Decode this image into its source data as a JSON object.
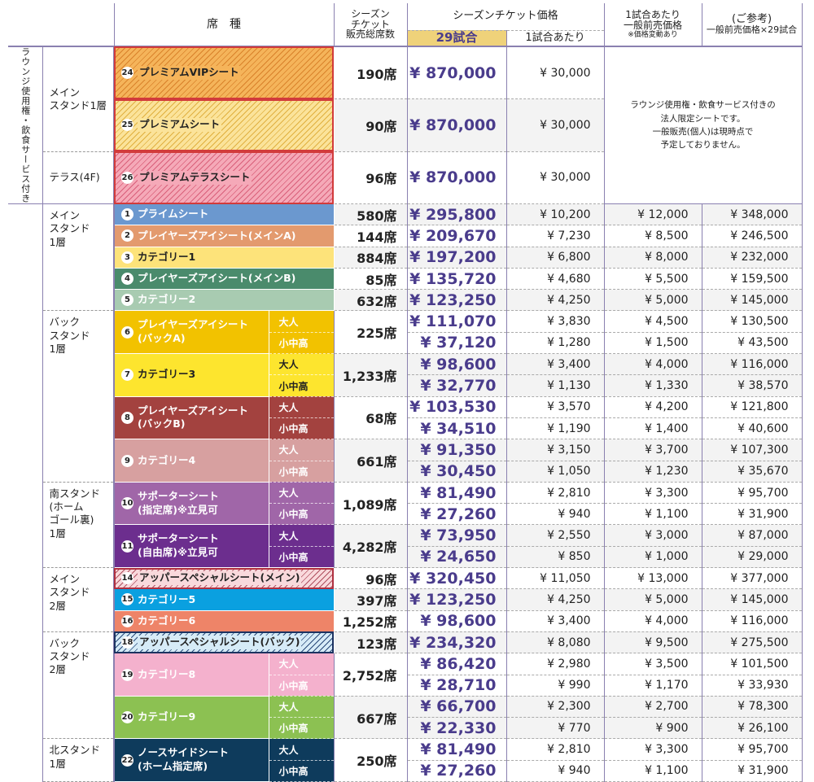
{
  "header": {
    "seat_type": "席　種",
    "total_seats": "シーズン\nチケット\n販売総席数",
    "season_price": "シーズンチケット価格",
    "games_29": "29試合",
    "per_game": "1試合あたり",
    "general_price": "1試合あたり\n一般前売価格",
    "general_note": "※価格変動あり",
    "reference": "(ご参考)",
    "reference_sub": "一般前売価格×29試合"
  },
  "colors": {
    "accent_purple": "#4a3c8c",
    "header_gold": "#efd27a",
    "grid_line": "#8a80b0"
  },
  "premium": {
    "side_label": "ラウンジ使用権・飲食サービス付き",
    "note": "ラウンジ使用権・飲食サービス付きの\n法人限定シートです。\n一般販売(個人)は現時点で\n予定しておりません。",
    "stands": [
      {
        "label": "メイン\nスタンド1層",
        "seats": [
          {
            "num": "24",
            "name": "プレミアムVIPシート",
            "color": "#f5b45a",
            "stripe_color": "#d9822b",
            "border_color": "#d23b3b",
            "text_color": "#222",
            "seats": "190席",
            "prices": [
              {
                "season_total": "¥ 870,000",
                "per_game": "¥ 30,000"
              }
            ]
          },
          {
            "num": "25",
            "name": "プレミアムシート",
            "color": "#fbe39a",
            "stripe_color": "#e0b040",
            "border_color": "#d23b3b",
            "text_color": "#222",
            "seats": "90席",
            "prices": [
              {
                "season_total": "¥ 870,000",
                "per_game": "¥ 30,000"
              }
            ]
          }
        ]
      },
      {
        "label": "テラス(4F)",
        "seats": [
          {
            "num": "26",
            "name": "プレミアムテラスシート",
            "color": "#f5a9b8",
            "stripe_color": "#d9607a",
            "border_color": "#d23b3b",
            "text_color": "#222",
            "seats": "96席",
            "prices": [
              {
                "season_total": "¥ 870,000",
                "per_game": "¥ 30,000"
              }
            ]
          }
        ]
      }
    ]
  },
  "sections": [
    {
      "stand": "メイン\nスタンド\n1層",
      "seats": [
        {
          "num": "1",
          "name": "プライムシート",
          "color": "#6b98cf",
          "text_color": "#fff",
          "seats": "580席",
          "prices": [
            {
              "season_total": "¥ 295,800",
              "per_game": "¥ 10,200",
              "general": "¥ 12,000",
              "reference": "¥ 348,000"
            }
          ]
        },
        {
          "num": "2",
          "name": "プレイヤーズアイシート(メインA)",
          "color": "#e39a6e",
          "text_color": "#fff",
          "seats": "144席",
          "prices": [
            {
              "season_total": "¥ 209,670",
              "per_game": "¥ 7,230",
              "general": "¥ 8,500",
              "reference": "¥ 246,500"
            }
          ]
        },
        {
          "num": "3",
          "name": "カテゴリー1",
          "color": "#fde37a",
          "text_color": "#222",
          "seats": "884席",
          "prices": [
            {
              "season_total": "¥ 197,200",
              "per_game": "¥ 6,800",
              "general": "¥ 8,000",
              "reference": "¥ 232,000"
            }
          ]
        },
        {
          "num": "4",
          "name": "プレイヤーズアイシート(メインB)",
          "color": "#4a8b6c",
          "text_color": "#fff",
          "seats": "85席",
          "prices": [
            {
              "season_total": "¥ 135,720",
              "per_game": "¥ 4,680",
              "general": "¥ 5,500",
              "reference": "¥ 159,500"
            }
          ]
        },
        {
          "num": "5",
          "name": "カテゴリー2",
          "color": "#a8cbb1",
          "text_color": "#fff",
          "seats": "632席",
          "prices": [
            {
              "season_total": "¥ 123,250",
              "per_game": "¥ 4,250",
              "general": "¥ 5,000",
              "reference": "¥ 145,000"
            }
          ]
        }
      ]
    },
    {
      "stand": "バック\nスタンド\n1層",
      "mid": true,
      "seats": [
        {
          "num": "6",
          "name": "プレイヤーズアイシート\n(バックA)",
          "color": "#f2c200",
          "text_color": "#fff",
          "seats": "225席",
          "prices": [
            {
              "tier": "大人",
              "season_total": "¥ 111,070",
              "per_game": "¥ 3,830",
              "general": "¥ 4,500",
              "reference": "¥ 130,500"
            },
            {
              "tier": "小中高",
              "season_total": "¥ 37,120",
              "per_game": "¥ 1,280",
              "general": "¥ 1,500",
              "reference": "¥ 43,500"
            }
          ]
        },
        {
          "num": "7",
          "name": "カテゴリー3",
          "color": "#fde52e",
          "text_color": "#222",
          "seats": "1,233席",
          "prices": [
            {
              "tier": "大人",
              "season_total": "¥ 98,600",
              "per_game": "¥ 3,400",
              "general": "¥ 4,000",
              "reference": "¥ 116,000"
            },
            {
              "tier": "小中高",
              "season_total": "¥ 32,770",
              "per_game": "¥ 1,130",
              "general": "¥ 1,330",
              "reference": "¥ 38,570"
            }
          ]
        },
        {
          "num": "8",
          "name": "プレイヤーズアイシート\n(バックB)",
          "color": "#a3423f",
          "text_color": "#fff",
          "seats": "68席",
          "prices": [
            {
              "tier": "大人",
              "season_total": "¥ 103,530",
              "per_game": "¥ 3,570",
              "general": "¥ 4,200",
              "reference": "¥ 121,800"
            },
            {
              "tier": "小中高",
              "season_total": "¥ 34,510",
              "per_game": "¥ 1,190",
              "general": "¥ 1,400",
              "reference": "¥ 40,600"
            }
          ]
        },
        {
          "num": "9",
          "name": "カテゴリー4",
          "color": "#d7a0a0",
          "text_color": "#fff",
          "seats": "661席",
          "prices": [
            {
              "tier": "大人",
              "season_total": "¥ 91,350",
              "per_game": "¥ 3,150",
              "general": "¥ 3,700",
              "reference": "¥ 107,300"
            },
            {
              "tier": "小中高",
              "season_total": "¥ 30,450",
              "per_game": "¥ 1,050",
              "general": "¥ 1,230",
              "reference": "¥ 35,670"
            }
          ]
        }
      ]
    },
    {
      "stand": "南スタンド\n(ホーム\nゴール裏)\n1層",
      "seats": [
        {
          "num": "10",
          "name": "サポーターシート\n(指定席)※立見可",
          "color": "#a066a8",
          "text_color": "#fff",
          "seats": "1,089席",
          "prices": [
            {
              "tier": "大人",
              "season_total": "¥ 81,490",
              "per_game": "¥ 2,810",
              "general": "¥ 3,300",
              "reference": "¥ 95,700"
            },
            {
              "tier": "小中高",
              "season_total": "¥ 27,260",
              "per_game": "¥ 940",
              "general": "¥ 1,100",
              "reference": "¥ 31,900"
            }
          ]
        },
        {
          "num": "11",
          "name": "サポーターシート\n(自由席)※立見可",
          "color": "#6c2e8e",
          "text_color": "#fff",
          "seats": "4,282席",
          "prices": [
            {
              "tier": "大人",
              "season_total": "¥ 73,950",
              "per_game": "¥ 2,550",
              "general": "¥ 3,000",
              "reference": "¥ 87,000"
            },
            {
              "tier": "小中高",
              "season_total": "¥ 24,650",
              "per_game": "¥ 850",
              "general": "¥ 1,000",
              "reference": "¥ 29,000"
            }
          ]
        }
      ]
    },
    {
      "stand": "メイン\nスタンド\n2層",
      "seats": [
        {
          "num": "14",
          "name": "アッパースペシャルシート(メイン)",
          "color": "#f9d9dc",
          "stripe_color": "#b05060",
          "border_color": "#b03040",
          "text_color": "#222",
          "seats": "96席",
          "prices": [
            {
              "season_total": "¥ 320,450",
              "per_game": "¥ 11,050",
              "general": "¥ 13,000",
              "reference": "¥ 377,000"
            }
          ]
        },
        {
          "num": "15",
          "name": "カテゴリー5",
          "color": "#0aa0e0",
          "text_color": "#fff",
          "seats": "397席",
          "prices": [
            {
              "season_total": "¥ 123,250",
              "per_game": "¥ 4,250",
              "general": "¥ 5,000",
              "reference": "¥ 145,000"
            }
          ]
        },
        {
          "num": "16",
          "name": "カテゴリー6",
          "color": "#ee8468",
          "text_color": "#fff",
          "seats": "1,252席",
          "prices": [
            {
              "season_total": "¥ 98,600",
              "per_game": "¥ 3,400",
              "general": "¥ 4,000",
              "reference": "¥ 116,000"
            }
          ]
        }
      ]
    },
    {
      "stand": "バック\nスタンド\n2層",
      "seats": [
        {
          "num": "18",
          "name": "アッパースペシャルシート(バック)",
          "color": "#d6ebf7",
          "stripe_color": "#2a4a7a",
          "border_color": "#1c3260",
          "text_color": "#222",
          "seats": "123席",
          "prices": [
            {
              "season_total": "¥ 234,320",
              "per_game": "¥ 8,080",
              "general": "¥ 9,500",
              "reference": "¥ 275,500"
            }
          ]
        },
        {
          "num": "19",
          "name": "カテゴリー8",
          "color": "#f4b1cd",
          "text_color": "#fff",
          "seats": "2,752席",
          "prices": [
            {
              "tier": "大人",
              "season_total": "¥ 86,420",
              "per_game": "¥ 2,980",
              "general": "¥ 3,500",
              "reference": "¥ 101,500"
            },
            {
              "tier": "小中高",
              "season_total": "¥ 28,710",
              "per_game": "¥ 990",
              "general": "¥ 1,170",
              "reference": "¥ 33,930"
            }
          ]
        },
        {
          "num": "20",
          "name": "カテゴリー9",
          "color": "#8cc152",
          "text_color": "#fff",
          "seats": "667席",
          "prices": [
            {
              "tier": "大人",
              "season_total": "¥ 66,700",
              "per_game": "¥ 2,300",
              "general": "¥ 2,700",
              "reference": "¥ 78,300"
            },
            {
              "tier": "小中高",
              "season_total": "¥ 22,330",
              "per_game": "¥ 770",
              "general": "¥ 900",
              "reference": "¥ 26,100"
            }
          ]
        }
      ]
    },
    {
      "stand": "北スタンド\n1層",
      "seats": [
        {
          "num": "22",
          "name": "ノースサイドシート\n(ホーム指定席)",
          "color": "#0e3b5c",
          "text_color": "#fff",
          "seats": "250席",
          "prices": [
            {
              "tier": "大人",
              "season_total": "¥ 81,490",
              "per_game": "¥ 2,810",
              "general": "¥ 3,300",
              "reference": "¥ 95,700"
            },
            {
              "tier": "小中高",
              "season_total": "¥ 27,260",
              "per_game": "¥ 940",
              "general": "¥ 1,100",
              "reference": "¥ 31,900"
            }
          ]
        }
      ]
    }
  ]
}
